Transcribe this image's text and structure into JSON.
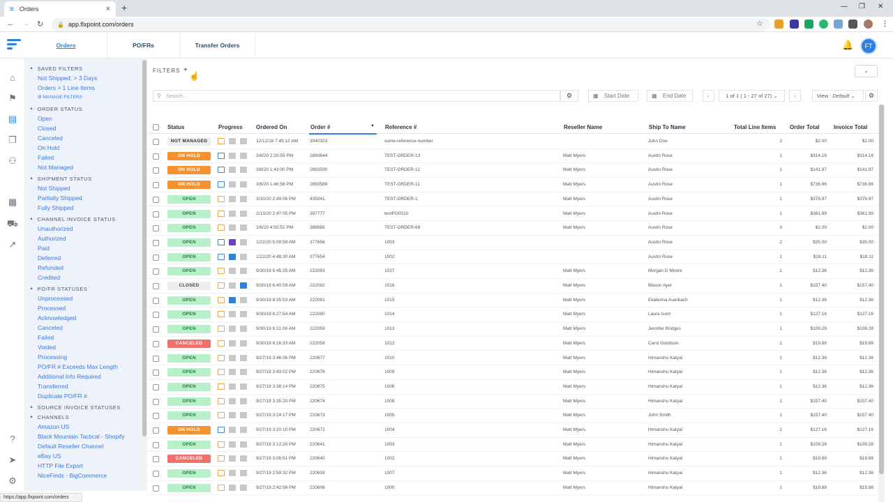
{
  "browser": {
    "tab_title": "Orders",
    "url": "app.flxpoint.com/orders",
    "status_url": "https://app.flxpoint.com/orders"
  },
  "header": {
    "tabs": [
      "Orders",
      "PO/FRs",
      "Transfer Orders"
    ],
    "avatar": "FT"
  },
  "filters_panel": {
    "manage_label": "MANAGE FILTERS",
    "sections": [
      {
        "title": "SAVED FILTERS",
        "items": [
          "Not Shipped: > 3 Days",
          "Orders > 1 Line Items"
        ]
      },
      {
        "title": "ORDER STATUS",
        "items": [
          "Open",
          "Closed",
          "Canceled",
          "On Hold",
          "Failed",
          "Not Managed"
        ]
      },
      {
        "title": "SHIPMENT STATUS",
        "items": [
          "Not Shipped",
          "Partially Shipped",
          "Fully Shipped"
        ]
      },
      {
        "title": "CHANNEL INVOICE STATUS",
        "items": [
          "Unauthorized",
          "Authorized",
          "Paid",
          "Deferred",
          "Refunded",
          "Credited"
        ]
      },
      {
        "title": "PO/FR STATUSES",
        "items": [
          "Unprocessed",
          "Processed",
          "Acknowledged",
          "Canceled",
          "Failed",
          "Voided",
          "Processing",
          "PO/FR # Exceeds Max Length",
          "Additional Info Required",
          "Transferred",
          "Duplicate PO/FR #"
        ]
      },
      {
        "title": "SOURCE INVOICE STATUSES",
        "items": []
      },
      {
        "title": "CHANNELS",
        "items": [
          "Amazon US",
          "Black Mountain Tactical - Shopify",
          "Default Reseller Channel",
          "eBay US",
          "HTTP File Export",
          "NiceFinds - BigCommerce"
        ]
      }
    ]
  },
  "toolbar": {
    "filters_label": "FILTERS",
    "add_filter": "+",
    "search_placeholder": "Search...",
    "start_date": "Start Date",
    "end_date": "End Date",
    "pager": "1 of 1 ( 1 - 27 of 27)",
    "view_label": "View :",
    "view_value": "Default"
  },
  "table": {
    "columns": [
      "Status",
      "Progress",
      "Ordered On",
      "Order #",
      "Reference #",
      "Reseller Name",
      "Ship To Name",
      "Total Line Items",
      "Order Total",
      "Invoice Total"
    ],
    "rows": [
      {
        "status": "NOT MANAGED",
        "ordered_on": "12/12/18 7:45:12 AM",
        "order": "3040323",
        "reference": "some-reference-number",
        "reseller": "",
        "ship_to": "John Doe",
        "lines": "2",
        "order_total": "$2.00",
        "invoice_total": "$2.00"
      },
      {
        "status": "ON HOLD",
        "ordered_on": "3/8/20 2:20:59 PM",
        "order": "2893644",
        "reference": "TEST-ORDER-13",
        "reseller": "Matt Myers",
        "ship_to": "Austin Rose",
        "lines": "1",
        "order_total": "$314.16",
        "invoice_total": "$314.16"
      },
      {
        "status": "ON HOLD",
        "ordered_on": "3/8/20 1:43:00 PM",
        "order": "2893590",
        "reference": "TEST-ORDER-12",
        "reseller": "Matt Myers",
        "ship_to": "Austin Rose",
        "lines": "1",
        "order_total": "$141.97",
        "invoice_total": "$141.97"
      },
      {
        "status": "ON HOLD",
        "ordered_on": "3/8/20 1:46:56 PM",
        "order": "2893589",
        "reference": "TEST-ORDER-11",
        "reseller": "Matt Myers",
        "ship_to": "Austin Rose",
        "lines": "1",
        "order_total": "$736.96",
        "invoice_total": "$736.96"
      },
      {
        "status": "OPEN",
        "ordered_on": "3/10/20 2:49:06 PM",
        "order": "435041",
        "reference": "TEST-ORDER-1",
        "reseller": "Matt Myers",
        "ship_to": "Austin Rose",
        "lines": "1",
        "order_total": "$376.97",
        "invoice_total": "$376.97"
      },
      {
        "status": "OPEN",
        "ordered_on": "2/13/20 2:47:05 PM",
        "order": "397777",
        "reference": "testPO0010",
        "reseller": "Matt Myers",
        "ship_to": "Austin Rose",
        "lines": "1",
        "order_total": "$361.99",
        "invoice_total": "$361.99"
      },
      {
        "status": "OPEN",
        "ordered_on": "2/6/20 4:50:52 PM",
        "order": "388985",
        "reference": "TEST-ORDER-69",
        "reseller": "Matt Myers",
        "ship_to": "Austin Rose",
        "lines": "3",
        "order_total": "$2.00",
        "invoice_total": "$2.00"
      },
      {
        "status": "OPEN",
        "ordered_on": "1/22/20 5:09:59 AM",
        "order": "377656",
        "reference": "1003",
        "reseller": "",
        "ship_to": "Austin Rose",
        "lines": "2",
        "order_total": "$35.00",
        "invoice_total": "$35.00"
      },
      {
        "status": "OPEN",
        "ordered_on": "1/22/20 4:48:30 AM",
        "order": "377654",
        "reference": "1002",
        "reseller": "",
        "ship_to": "Austin Rose",
        "lines": "1",
        "order_total": "$18.11",
        "invoice_total": "$18.11"
      },
      {
        "status": "OPEN",
        "ordered_on": "9/30/19 6:45:25 AM",
        "order": "222093",
        "reference": "1017",
        "reseller": "Matt Myers",
        "ship_to": "Morgan D Moore",
        "lines": "1",
        "order_total": "$12.36",
        "invoice_total": "$12.36"
      },
      {
        "status": "CLOSED",
        "ordered_on": "9/30/19 6:40:59 AM",
        "order": "222092",
        "reference": "1016",
        "reseller": "Matt Myers",
        "ship_to": "Mason Ayer",
        "lines": "1",
        "order_total": "$157.40",
        "invoice_total": "$157.40"
      },
      {
        "status": "OPEN",
        "ordered_on": "9/30/19 6:35:53 AM",
        "order": "222091",
        "reference": "1015",
        "reseller": "Matt Myers",
        "ship_to": "Ekaterina Auerbach",
        "lines": "1",
        "order_total": "$12.36",
        "invoice_total": "$12.36"
      },
      {
        "status": "OPEN",
        "ordered_on": "9/30/19 6:27:54 AM",
        "order": "222080",
        "reference": "1014",
        "reseller": "Matt Myers",
        "ship_to": "Laura Isom",
        "lines": "1",
        "order_total": "$127.16",
        "invoice_total": "$127.16"
      },
      {
        "status": "OPEN",
        "ordered_on": "9/30/19 6:21:00 AM",
        "order": "222059",
        "reference": "1013",
        "reseller": "Matt Myers",
        "ship_to": "Jennifer Bridges",
        "lines": "1",
        "order_total": "$109.28",
        "invoice_total": "$109.28"
      },
      {
        "status": "CANCELED",
        "ordered_on": "9/30/19 6:16:33 AM",
        "order": "222058",
        "reference": "1012",
        "reseller": "Matt Myers",
        "ship_to": "Carol Goodson",
        "lines": "1",
        "order_total": "$19.88",
        "invoice_total": "$19.88"
      },
      {
        "status": "OPEN",
        "ordered_on": "9/27/19 3:46:36 PM",
        "order": "220677",
        "reference": "1010",
        "reseller": "Matt Myers",
        "ship_to": "Himanshu Katyal",
        "lines": "1",
        "order_total": "$12.36",
        "invoice_total": "$12.36"
      },
      {
        "status": "OPEN",
        "ordered_on": "9/27/19 3:43:02 PM",
        "order": "220676",
        "reference": "1009",
        "reseller": "Matt Myers",
        "ship_to": "Himanshu Katyal",
        "lines": "1",
        "order_total": "$12.36",
        "invoice_total": "$12.36"
      },
      {
        "status": "OPEN",
        "ordered_on": "9/27/19 3:38:14 PM",
        "order": "220675",
        "reference": "1006",
        "reseller": "Matt Myers",
        "ship_to": "Himanshu Katyal",
        "lines": "1",
        "order_total": "$12.36",
        "invoice_total": "$12.36"
      },
      {
        "status": "OPEN",
        "ordered_on": "9/27/19 3:35:20 PM",
        "order": "220674",
        "reference": "1008",
        "reseller": "Matt Myers",
        "ship_to": "Himanshu Katyal",
        "lines": "1",
        "order_total": "$157.40",
        "invoice_total": "$157.40"
      },
      {
        "status": "OPEN",
        "ordered_on": "9/27/19 3:24:17 PM",
        "order": "220673",
        "reference": "1005",
        "reseller": "Matt Myers",
        "ship_to": "John Smith",
        "lines": "1",
        "order_total": "$157.40",
        "invoice_total": "$157.40"
      },
      {
        "status": "ON HOLD",
        "ordered_on": "9/27/19 3:20:10 PM",
        "order": "220672",
        "reference": "1004",
        "reseller": "Matt Myers",
        "ship_to": "Himanshu Katyal",
        "lines": "1",
        "order_total": "$127.16",
        "invoice_total": "$127.16"
      },
      {
        "status": "OPEN",
        "ordered_on": "9/27/19 3:12:20 PM",
        "order": "220641",
        "reference": "1003",
        "reseller": "Matt Myers",
        "ship_to": "Himanshu Katyal",
        "lines": "1",
        "order_total": "$109.28",
        "invoice_total": "$109.28"
      },
      {
        "status": "CANCELED",
        "ordered_on": "9/27/19 3:06:51 PM",
        "order": "220640",
        "reference": "1002",
        "reseller": "Matt Myers",
        "ship_to": "Himanshu Katyal",
        "lines": "1",
        "order_total": "$19.88",
        "invoice_total": "$19.88"
      },
      {
        "status": "OPEN",
        "ordered_on": "9/27/19 2:59:32 PM",
        "order": "220639",
        "reference": "1007",
        "reseller": "Matt Myers",
        "ship_to": "Himanshu Katyal",
        "lines": "1",
        "order_total": "$12.36",
        "invoice_total": "$12.36"
      },
      {
        "status": "OPEN",
        "ordered_on": "9/27/19 2:42:58 PM",
        "order": "220606",
        "reference": "1000",
        "reseller": "Matt Myers",
        "ship_to": "Himanshu Katyal",
        "lines": "1",
        "order_total": "$19.88",
        "invoice_total": "$19.88"
      }
    ]
  },
  "colors": {
    "accent": "#2f7fe0",
    "open_bg": "#b7f0c9",
    "open_fg": "#1e7a3d",
    "hold_bg": "#f5922f",
    "hold_fg": "#ffffff",
    "canceled_bg": "#f0706b",
    "canceled_fg": "#ffffff",
    "closed_bg": "#eeeeee",
    "closed_fg": "#444444",
    "notmanaged_bg": "#eeeeee",
    "notmanaged_fg": "#333333"
  }
}
